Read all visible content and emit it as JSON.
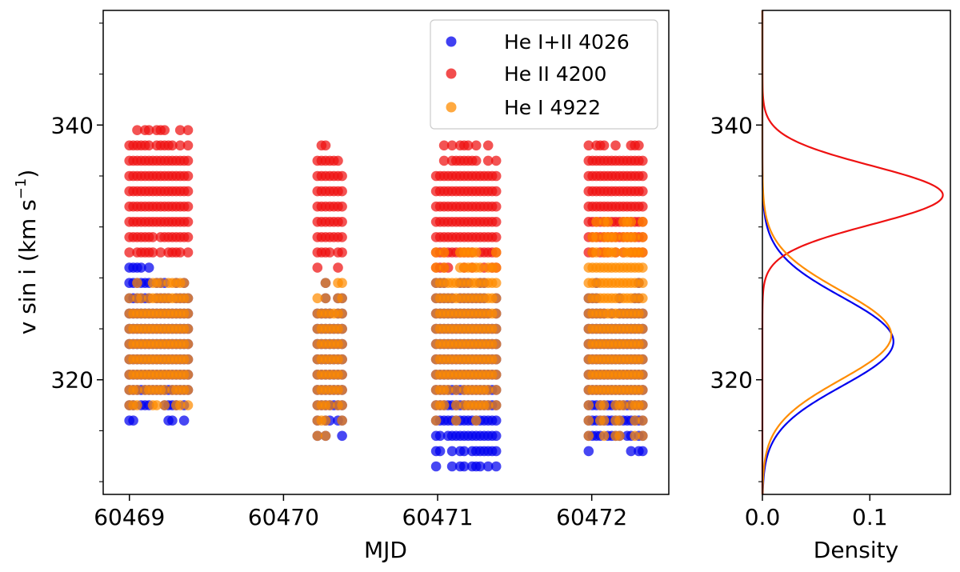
{
  "chart_data": [
    {
      "type": "scatter",
      "title": "",
      "xlabel": "MJD",
      "ylabel": "v sin i (km s",
      "ylabel_sup": "−1",
      "ylabel_close": ")",
      "xlim": [
        60468.83,
        60472.5
      ],
      "ylim": [
        311,
        349
      ],
      "xticks": [
        60469,
        60470,
        60471,
        60472
      ],
      "xtick_labels": [
        "60469",
        "60470",
        "60471",
        "60472"
      ],
      "yticks": [
        320,
        340
      ],
      "ytick_labels": [
        "320",
        "340"
      ],
      "yminor_ticks": [
        312,
        316,
        324,
        328,
        332,
        336,
        344,
        348
      ],
      "legend_position": "top-right",
      "series": [
        {
          "name": "He I+II 4026",
          "color": "#0000ee",
          "clusters": [
            {
              "x0": 60469.0,
              "x1": 60469.38,
              "ymin": 316.6,
              "ymax": 328.8
            },
            {
              "x0": 60470.22,
              "x1": 60470.38,
              "ymin": 315.4,
              "ymax": 327.6
            },
            {
              "x0": 60470.99,
              "x1": 60471.38,
              "ymin": 312.8,
              "ymax": 328.6
            },
            {
              "x0": 60471.98,
              "x1": 60472.33,
              "ymin": 314.2,
              "ymax": 327.6
            }
          ]
        },
        {
          "name": "He II 4200",
          "color": "#ee1111",
          "clusters": [
            {
              "x0": 60469.0,
              "x1": 60469.38,
              "ymin": 329.4,
              "ymax": 340.2
            },
            {
              "x0": 60470.22,
              "x1": 60470.38,
              "ymin": 328.5,
              "ymax": 339.2
            },
            {
              "x0": 60470.99,
              "x1": 60471.38,
              "ymin": 328.3,
              "ymax": 339.2
            },
            {
              "x0": 60471.98,
              "x1": 60472.33,
              "ymin": 329.4,
              "ymax": 339.2
            }
          ]
        },
        {
          "name": "He I 4922",
          "color": "#ff8c00",
          "clusters": [
            {
              "x0": 60469.0,
              "x1": 60469.38,
              "ymin": 317.6,
              "ymax": 328.4
            },
            {
              "x0": 60470.22,
              "x1": 60470.38,
              "ymin": 316.0,
              "ymax": 328.6
            },
            {
              "x0": 60470.99,
              "x1": 60471.38,
              "ymin": 317.2,
              "ymax": 330.8
            },
            {
              "x0": 60471.98,
              "x1": 60472.33,
              "ymin": 315.4,
              "ymax": 333.2
            }
          ]
        }
      ]
    },
    {
      "type": "line",
      "title": "",
      "xlabel": "Density",
      "ylabel": "",
      "xlim": [
        0.0,
        0.175
      ],
      "ylim": [
        311,
        349
      ],
      "xticks": [
        0.0,
        0.1
      ],
      "xtick_labels": [
        "0.0",
        "0.1"
      ],
      "yticks": [
        320,
        340
      ],
      "ytick_labels": [
        "320",
        "340"
      ],
      "yminor_ticks": [
        312,
        316,
        324,
        328,
        332,
        336,
        344,
        348
      ],
      "series": [
        {
          "name": "He I+II 4026",
          "color": "#0000ee",
          "distribution": "gaussian",
          "mean": 323.0,
          "sd": 3.5,
          "peak_density": 0.122
        },
        {
          "name": "He II 4200",
          "color": "#ee1111",
          "distribution": "gaussian",
          "mean": 334.5,
          "sd": 2.3,
          "peak_density": 0.168
        },
        {
          "name": "He I 4922",
          "color": "#ff8c00",
          "distribution": "gaussian",
          "mean": 323.5,
          "sd": 3.5,
          "peak_density": 0.12
        }
      ]
    }
  ]
}
